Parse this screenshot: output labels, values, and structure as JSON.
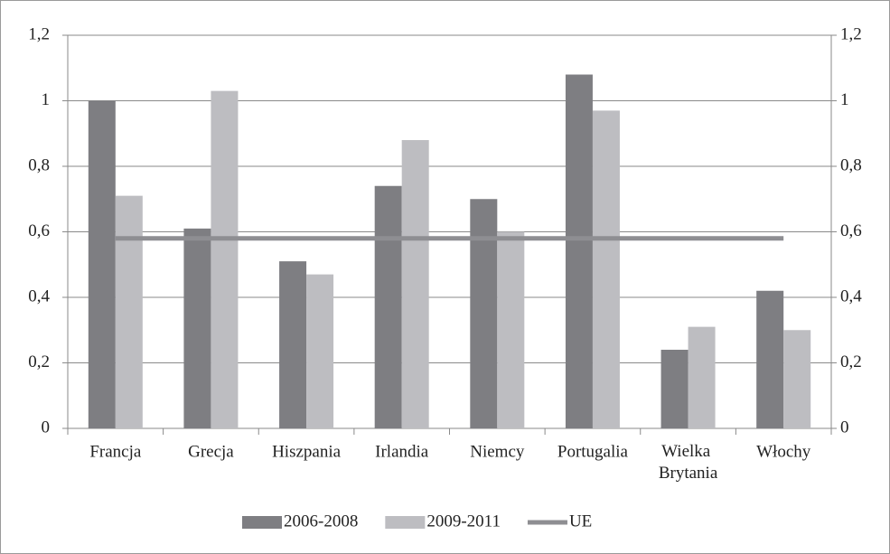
{
  "chart_data": {
    "type": "bar",
    "categories": [
      "Francja",
      "Grecja",
      "Hiszpania",
      "Irlandia",
      "Niemcy",
      "Portugalia",
      "Wielka Brytania",
      "Włochy"
    ],
    "series": [
      {
        "name": "2006-2008",
        "type": "bar",
        "color": "#7e7e82",
        "values": [
          1.0,
          0.61,
          0.51,
          0.74,
          0.7,
          1.08,
          0.24,
          0.42
        ]
      },
      {
        "name": "2009-2011",
        "type": "bar",
        "color": "#bdbdc1",
        "values": [
          0.71,
          1.03,
          0.47,
          0.88,
          0.6,
          0.97,
          0.31,
          0.3
        ]
      },
      {
        "name": "UE",
        "type": "line",
        "color": "#8e8e92",
        "values": [
          0.58,
          0.58,
          0.58,
          0.58,
          0.58,
          0.58,
          0.58,
          0.58
        ]
      }
    ],
    "ylim": [
      0,
      1.2
    ],
    "yticks": [
      0,
      {
        "value": 0.2,
        "label": "0,2"
      },
      {
        "value": 0.4,
        "label": "0,4"
      },
      {
        "value": 0.6,
        "label": "0,6"
      },
      {
        "value": 0.8,
        "label": "0,8"
      },
      1,
      {
        "value": 1.2,
        "label": "1,2"
      }
    ],
    "y2lim": [
      0,
      1.2
    ],
    "y2ticks": [
      0,
      {
        "value": 0.2,
        "label": "0,2"
      },
      {
        "value": 0.4,
        "label": "0,4"
      },
      {
        "value": 0.6,
        "label": "0,6"
      },
      {
        "value": 0.8,
        "label": "0,8"
      },
      1,
      {
        "value": 1.2,
        "label": "1,2"
      }
    ],
    "grid": true,
    "legend": "bottom"
  }
}
